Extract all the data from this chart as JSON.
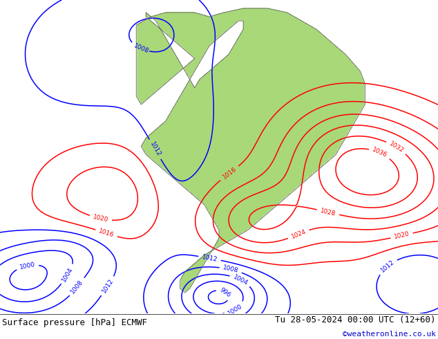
{
  "title_left": "Surface pressure [hPa] ECMWF",
  "title_right": "Tu 28-05-2024 00:00 UTC (12+60)",
  "credit": "©weatheronline.co.uk",
  "bg_color": "#c8d8e8",
  "land_color": "#a8d878",
  "border_color": "#606060",
  "isobar_blue": "#0000ff",
  "isobar_black": "#000000",
  "isobar_red": "#ff0000",
  "credit_color": "#0000cc",
  "label_fontsize": 6.5,
  "text_fontsize": 9,
  "credit_fontsize": 8
}
